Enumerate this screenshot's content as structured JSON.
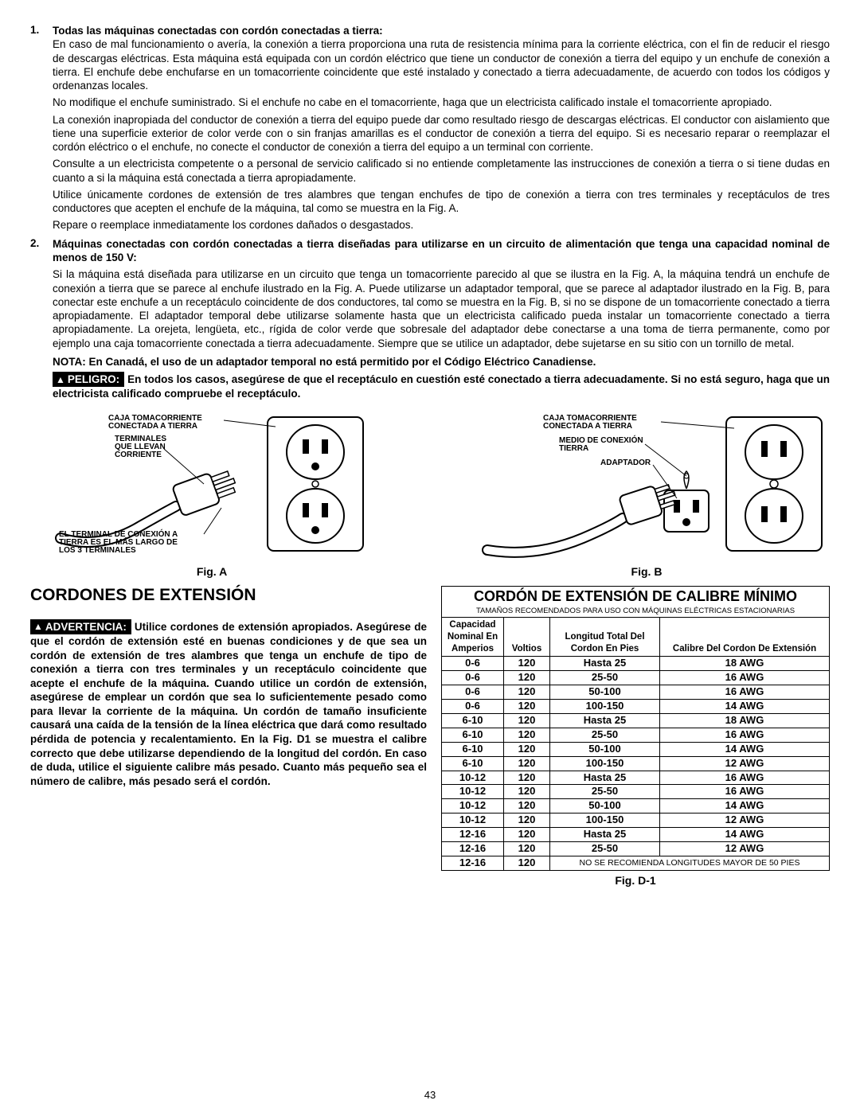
{
  "list": {
    "item1": {
      "num": "1.",
      "lead": "Todas las máquinas conectadas con cordón conectadas a tierra:",
      "p1": "En caso de mal funcionamiento o avería, la conexión a tierra proporciona una ruta de resistencia mínima para la corriente eléctrica, con el fin de reducir el riesgo de descargas eléctricas. Esta máquina está equipada con un cordón eléctrico que tiene un conductor de conexión a tierra del equipo y un enchufe de conexión a tierra. El enchufe debe enchufarse en un tomacorriente coincidente que esté instalado y conectado a tierra adecuadamente, de acuerdo con todos los códigos y ordenanzas locales.",
      "p2": "No modifique el enchufe suministrado. Si el enchufe no cabe en el tomacorriente, haga que un electricista calificado instale el tomacorriente apropiado.",
      "p3": "La conexión inapropiada del conductor de conexión a tierra del equipo puede dar como resultado riesgo de descargas eléctricas. El conductor con aislamiento que tiene una superficie exterior de color verde con o sin franjas amarillas es el conductor de conexión a tierra del equipo. Si es necesario reparar o reemplazar el cordón eléctrico o el enchufe, no conecte el conductor de conexión a tierra del equipo a un terminal con corriente.",
      "p4": "Consulte a un electricista competente o a personal de servicio calificado si no entiende completamente las instrucciones de conexión a tierra o si tiene dudas en cuanto a si la máquina está conectada a tierra apropiadamente.",
      "p5": "Utilice únicamente cordones de extensión de tres alambres que tengan enchufes de tipo de conexión a tierra con tres terminales y receptáculos de tres conductores que acepten el enchufe de la máquina, tal como se muestra en la Fig. A.",
      "p6": "Repare o reemplace inmediatamente los cordones dañados o desgastados."
    },
    "item2": {
      "num": "2.",
      "lead": "Máquinas conectadas con cordón conectadas a tierra diseñadas para utilizarse en un circuito de alimentación que tenga una capacidad nominal de menos de 150 V:",
      "p1": "Si la máquina está diseñada para utilizarse en un circuito que tenga un tomacorriente parecido al que se ilustra en la Fig. A, la máquina tendrá un enchufe de conexión a tierra que se parece al enchufe ilustrado en la Fig. A. Puede utilizarse un adaptador temporal, que se parece al adaptador ilustrado en la Fig. B, para conectar este enchufe a un receptáculo coincidente de dos conductores, tal como se muestra en la Fig. B, si no se dispone de un tomacorriente conectado a tierra apropiadamente. El adaptador temporal debe utilizarse solamente hasta que un electricista calificado pueda instalar un tomacorriente conectado a tierra apropiadamente. La orejeta, lengüeta, etc., rígida de color verde que sobresale del adaptador debe conectarse a una toma de tierra permanente, como por ejemplo una caja tomacorriente conectada a tierra adecuadamente. Siempre que se utilice un adaptador, debe sujetarse en su sitio con un tornillo de metal."
    },
    "nota": "NOTA: En Canadá, el uso de un adaptador temporal no está permitido por el Código Eléctrico Canadiense.",
    "peligro_label": "PELIGRO:",
    "peligro_text": "En todos los casos, asegúrese de que el receptáculo en cuestión esté conectado a tierra adecuadamente. Si no está seguro, haga que un electricista calificado compruebe el receptáculo."
  },
  "figA": {
    "caption": "Fig. A",
    "label_box": "CAJA TOMACORRIENTE CONECTADA A TIERRA",
    "label_blades": "TERMINALES QUE LLEVAN CORRIENTE",
    "label_ground": "EL TERMINAL DE CONEXIÓN A TIERRA ES EL MÁS LARGO DE LOS 3 TERMINALES"
  },
  "figB": {
    "caption": "Fig. B",
    "label_box": "CAJA TOMACORRIENTE CONECTADA A TIERRA",
    "label_means": "MEDIO DE CONEXIÓN TIERRA",
    "label_adapter": "ADAPTADOR"
  },
  "ext": {
    "heading": "CORDONES DE EXTENSIÓN",
    "adv_label": "ADVERTENCIA:",
    "adv_text": "Utilice cordones de extensión apropiados. Asegúrese de que el cordón de extensión esté en buenas condiciones y de que sea un cordón de extensión de tres alambres que tenga un enchufe de tipo de conexión a tierra con tres terminales y un receptáculo coincidente que acepte el enchufe de la máquina. Cuando utilice un cordón de extensión, asegúrese de emplear un cordón que sea lo suficientemente pesado como para llevar la corriente de la máquina. Un cordón de tamaño insuficiente causará una caída de la tensión de la línea eléctrica que dará como resultado pérdida de potencia y recalentamiento. En la Fig. D1 se muestra el calibre correcto que debe utilizarse dependiendo de la longitud del cordón. En caso de duda, utilice el siguiente calibre más pesado. Cuanto más pequeño sea el número de calibre, más pesado será el cordón."
  },
  "table": {
    "title": "CORDÓN DE EXTENSIÓN DE CALIBRE MÍNIMO",
    "subtitle": "TAMAÑOS RECOMENDADOS PARA USO CON MÁQUINAS ELÉCTRICAS ESTACIONARIAS",
    "head": {
      "c0": "Capacidad Nominal En Amperios",
      "c1": "Voltios",
      "c2": "Longitud Total Del Cordon En Pies",
      "c3": "Calibre Del Cordon De Extensión"
    },
    "rows": [
      [
        "0-6",
        "120",
        "Hasta 25",
        "18 AWG"
      ],
      [
        "0-6",
        "120",
        "25-50",
        "16 AWG"
      ],
      [
        "0-6",
        "120",
        "50-100",
        "16 AWG"
      ],
      [
        "0-6",
        "120",
        "100-150",
        "14 AWG"
      ],
      [
        "6-10",
        "120",
        "Hasta 25",
        "18 AWG"
      ],
      [
        "6-10",
        "120",
        "25-50",
        "16 AWG"
      ],
      [
        "6-10",
        "120",
        "50-100",
        "14 AWG"
      ],
      [
        "6-10",
        "120",
        "100-150",
        "12 AWG"
      ],
      [
        "10-12",
        "120",
        "Hasta 25",
        "16 AWG"
      ],
      [
        "10-12",
        "120",
        "25-50",
        "16 AWG"
      ],
      [
        "10-12",
        "120",
        "50-100",
        "14 AWG"
      ],
      [
        "10-12",
        "120",
        "100-150",
        "12 AWG"
      ],
      [
        "12-16",
        "120",
        "Hasta 25",
        "14 AWG"
      ],
      [
        "12-16",
        "120",
        "25-50",
        "12 AWG"
      ]
    ],
    "last": [
      "12-16",
      "120"
    ],
    "norec": "NO SE RECOMIENDA LONGITUDES MAYOR DE 50 PIES",
    "caption": "Fig. D-1"
  },
  "page": "43"
}
